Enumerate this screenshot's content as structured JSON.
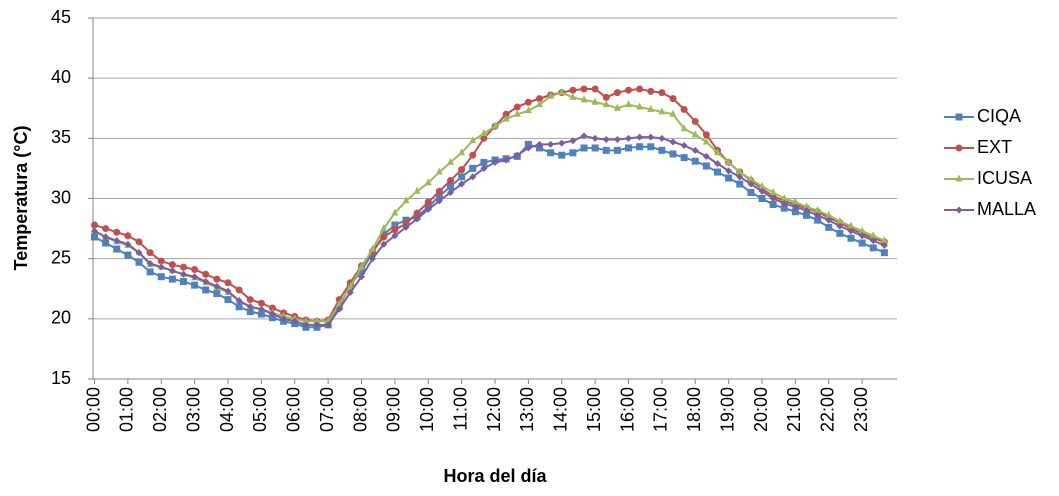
{
  "chart_data": {
    "type": "line",
    "x_label": "Hora del día",
    "y_label": "Temperatura (°C)",
    "categories": [
      "00:00",
      null,
      null,
      "01:00",
      null,
      null,
      "02:00",
      null,
      null,
      "03:00",
      null,
      null,
      "04:00",
      null,
      null,
      "05:00",
      null,
      null,
      "06:00",
      null,
      null,
      "07:00",
      null,
      null,
      "08:00",
      null,
      null,
      "09:00",
      null,
      null,
      "10:00",
      null,
      null,
      "11:00",
      null,
      null,
      "12:00",
      null,
      null,
      "13:00",
      null,
      null,
      "14:00",
      null,
      null,
      "15:00",
      null,
      null,
      "16:00",
      null,
      null,
      "17:00",
      null,
      null,
      "18:00",
      null,
      null,
      "19:00",
      null,
      null,
      "20:00",
      null,
      null,
      "21:00",
      null,
      null,
      "22:00",
      null,
      null,
      "23:00",
      null,
      null
    ],
    "series": [
      {
        "name": "CIQA",
        "color": "#4f81bd",
        "marker": "square",
        "values": [
          26.8,
          26.3,
          25.8,
          25.3,
          24.7,
          23.9,
          23.5,
          23.3,
          23.1,
          22.8,
          22.4,
          22.1,
          21.6,
          21.0,
          20.6,
          20.4,
          20.1,
          19.8,
          19.6,
          19.3,
          19.3,
          19.5,
          21.0,
          22.8,
          24.0,
          25.5,
          27.0,
          27.8,
          28.2,
          28.5,
          29.3,
          30.2,
          31.0,
          31.8,
          32.5,
          33.0,
          33.2,
          33.3,
          33.5,
          34.5,
          34.2,
          33.8,
          33.6,
          33.8,
          34.2,
          34.2,
          34.0,
          34.0,
          34.2,
          34.3,
          34.3,
          34.0,
          33.7,
          33.4,
          33.1,
          32.7,
          32.2,
          31.7,
          31.2,
          30.5,
          30.0,
          29.5,
          29.2,
          28.9,
          28.6,
          28.2,
          27.6,
          27.1,
          26.7,
          26.3,
          25.9,
          25.5
        ]
      },
      {
        "name": "EXT",
        "color": "#c0504d",
        "marker": "circle",
        "values": [
          27.8,
          27.5,
          27.2,
          26.9,
          26.4,
          25.5,
          24.8,
          24.5,
          24.3,
          24.1,
          23.7,
          23.3,
          23.0,
          22.4,
          21.6,
          21.3,
          20.9,
          20.5,
          20.2,
          19.9,
          19.8,
          19.9,
          21.6,
          23.0,
          24.4,
          25.6,
          26.8,
          27.4,
          27.9,
          28.8,
          29.7,
          30.6,
          31.5,
          32.4,
          33.6,
          35.0,
          36.0,
          37.0,
          37.6,
          38.0,
          38.3,
          38.6,
          38.8,
          39.0,
          39.1,
          39.1,
          38.4,
          38.8,
          39.0,
          39.1,
          38.9,
          38.8,
          38.3,
          37.4,
          36.4,
          35.3,
          34.0,
          33.0,
          32.2,
          31.5,
          30.8,
          30.2,
          29.8,
          29.5,
          29.2,
          28.9,
          28.4,
          28.0,
          27.5,
          27.1,
          26.7,
          26.4
        ]
      },
      {
        "name": "ICUSA",
        "color": "#9bbb59",
        "marker": "triangle",
        "values": [
          27.3,
          26.8,
          26.4,
          26.1,
          25.5,
          24.5,
          24.3,
          24.0,
          23.7,
          23.4,
          23.0,
          22.6,
          22.2,
          21.5,
          21.0,
          20.8,
          20.5,
          20.2,
          20.0,
          19.8,
          19.8,
          19.8,
          21.2,
          22.7,
          24.3,
          25.8,
          27.5,
          28.8,
          29.8,
          30.6,
          31.3,
          32.2,
          33.0,
          33.8,
          34.8,
          35.4,
          36.0,
          36.6,
          37.0,
          37.3,
          37.8,
          38.5,
          38.8,
          38.4,
          38.2,
          38.0,
          37.8,
          37.5,
          37.8,
          37.6,
          37.4,
          37.2,
          37.0,
          35.8,
          35.3,
          34.7,
          33.8,
          33.0,
          32.2,
          31.6,
          31.0,
          30.5,
          30.0,
          29.7,
          29.3,
          29.0,
          28.6,
          28.1,
          27.7,
          27.3,
          26.9,
          26.5
        ]
      },
      {
        "name": "MALLA",
        "color": "#7a5fa0",
        "marker": "diamond",
        "values": [
          27.3,
          26.8,
          26.5,
          26.2,
          25.5,
          24.6,
          24.3,
          24.0,
          23.7,
          23.5,
          23.1,
          22.7,
          22.3,
          21.5,
          21.0,
          20.8,
          20.4,
          20.0,
          19.8,
          19.5,
          19.5,
          19.5,
          20.8,
          22.2,
          23.5,
          25.0,
          26.2,
          26.9,
          27.6,
          28.3,
          29.1,
          29.8,
          30.5,
          31.2,
          31.8,
          32.5,
          33.0,
          33.2,
          33.6,
          34.2,
          34.5,
          34.5,
          34.6,
          34.8,
          35.2,
          35.0,
          34.9,
          34.9,
          35.0,
          35.1,
          35.1,
          35.0,
          34.7,
          34.4,
          34.0,
          33.5,
          32.9,
          32.3,
          31.8,
          31.2,
          30.6,
          30.0,
          29.6,
          29.3,
          29.0,
          28.6,
          28.2,
          27.7,
          27.3,
          26.9,
          26.5,
          26.1
        ]
      }
    ],
    "ylim": [
      15,
      45
    ],
    "yticks": [
      15,
      20,
      25,
      30,
      35,
      40,
      45
    ],
    "grid": true,
    "legend": "right"
  }
}
